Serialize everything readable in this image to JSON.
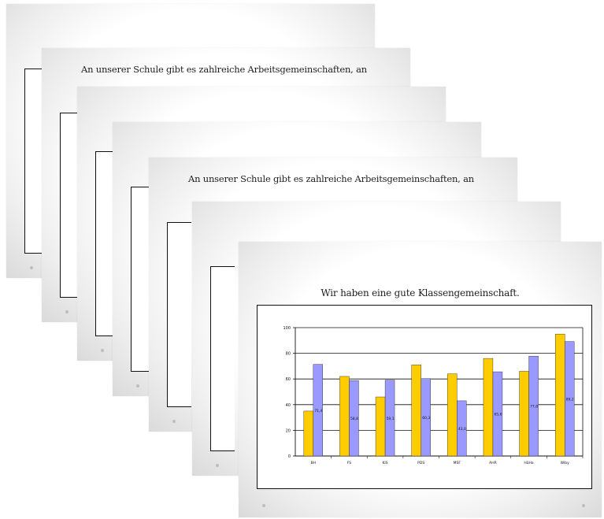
{
  "slides": {
    "caption_arbeitsgemeinschaften": "An unserer Schule gibt es  zahlreiche Arbeitsgemeinschaften, an",
    "caption_klassengemeinschaft": "Wir haben eine gute Klassengemeinschaft."
  },
  "chart_data": {
    "type": "bar",
    "title": "",
    "xlabel": "",
    "ylabel": "",
    "ylim": [
      0,
      100
    ],
    "yticks": [
      "0",
      "20",
      "40",
      "60",
      "80",
      "100"
    ],
    "categories": [
      "BH",
      "FS",
      "KIS",
      "PDS",
      "MSF",
      "AHR",
      "HäHa",
      "Wiby"
    ],
    "series": [
      {
        "color": "#ffcc00",
        "values": [
          35,
          62,
          46,
          71,
          64,
          76,
          66,
          95
        ]
      },
      {
        "color": "#9999ff",
        "values": [
          71.4,
          58.8,
          59.1,
          60.3,
          43.0,
          65.6,
          77.8,
          89.2
        ]
      }
    ],
    "data_labels": [
      "71,4",
      "58,8",
      "59,1",
      "60,3",
      "43,0",
      "65,6",
      "77,8",
      "89,2"
    ],
    "gridlines": true
  },
  "colors": {
    "bar_yellow": "#ffcc00",
    "bar_blue": "#9999ff"
  }
}
